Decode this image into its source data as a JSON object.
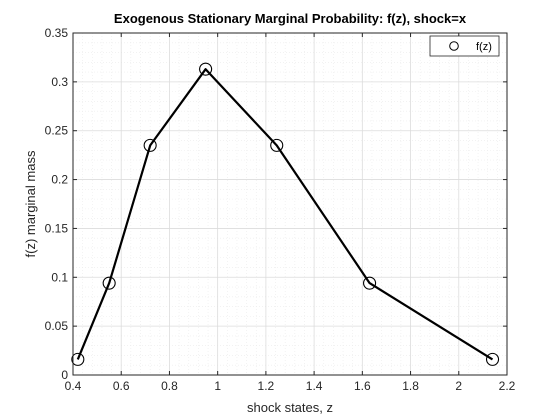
{
  "chart_data": {
    "type": "line",
    "title": "Exogenous Stationary Marginal Probability: f(z), shock=x",
    "xlabel": "shock states, z",
    "ylabel": "f(z) marginal mass",
    "xlim": [
      0.4,
      2.2
    ],
    "ylim": [
      0,
      0.35
    ],
    "xticks": [
      0.4,
      0.6,
      0.8,
      1.0,
      1.2,
      1.4,
      1.6,
      1.8,
      2.0,
      2.2
    ],
    "xtick_labels": [
      "0.4",
      "0.6",
      "0.8",
      "1",
      "1.2",
      "1.4",
      "1.6",
      "1.8",
      "2",
      "2.2"
    ],
    "yticks": [
      0,
      0.05,
      0.1,
      0.15,
      0.2,
      0.25,
      0.3,
      0.35
    ],
    "ytick_labels": [
      "0",
      "0.05",
      "0.1",
      "0.15",
      "0.2",
      "0.25",
      "0.3",
      "0.35"
    ],
    "grid": true,
    "minor_grid": true,
    "legend_position": "top-right",
    "series": [
      {
        "name": "f(z)",
        "marker": "circle",
        "color": "#000000",
        "x": [
          0.42,
          0.55,
          0.72,
          0.95,
          1.245,
          1.63,
          2.14
        ],
        "y": [
          0.016,
          0.094,
          0.235,
          0.313,
          0.235,
          0.094,
          0.016
        ]
      }
    ]
  }
}
